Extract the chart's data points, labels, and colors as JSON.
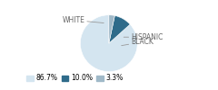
{
  "labels": [
    "WHITE",
    "HISPANIC",
    "BLACK"
  ],
  "values": [
    86.7,
    10.0,
    3.3
  ],
  "colors": [
    "#d4e5f0",
    "#2e6b8a",
    "#a0b9c8"
  ],
  "legend_labels": [
    "86.7%",
    "10.0%",
    "3.3%"
  ],
  "startangle": 90,
  "font_size": 5.5,
  "legend_fontsize": 5.5,
  "text_color": "#666666",
  "line_color": "#999999"
}
